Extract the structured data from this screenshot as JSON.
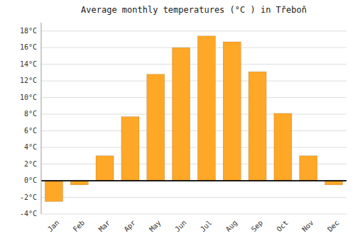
{
  "chart_data": {
    "type": "bar",
    "title": "Average monthly temperatures (°C ) in Třeboň",
    "categories": [
      "Jan",
      "Feb",
      "Mar",
      "Apr",
      "May",
      "Jun",
      "Jul",
      "Aug",
      "Sep",
      "Oct",
      "Nov",
      "Dec"
    ],
    "values": [
      -2.5,
      -0.5,
      3.0,
      7.7,
      12.8,
      16.0,
      17.4,
      16.7,
      13.1,
      8.1,
      3.0,
      -0.5
    ],
    "color": "#FFA726",
    "ylim": [
      -4,
      19
    ],
    "yticks": [
      {
        "value": -4,
        "label": "-4°C"
      },
      {
        "value": -2,
        "label": "-2°C"
      },
      {
        "value": 0,
        "label": "0°C"
      },
      {
        "value": 2,
        "label": "2°C"
      },
      {
        "value": 4,
        "label": "4°C"
      },
      {
        "value": 6,
        "label": "6°C"
      },
      {
        "value": 8,
        "label": "8°C"
      },
      {
        "value": 10,
        "label": "10°C"
      },
      {
        "value": 12,
        "label": "12°C"
      },
      {
        "value": 14,
        "label": "14°C"
      },
      {
        "value": 16,
        "label": "16°C"
      },
      {
        "value": 18,
        "label": "18°C"
      }
    ],
    "grid": true
  }
}
